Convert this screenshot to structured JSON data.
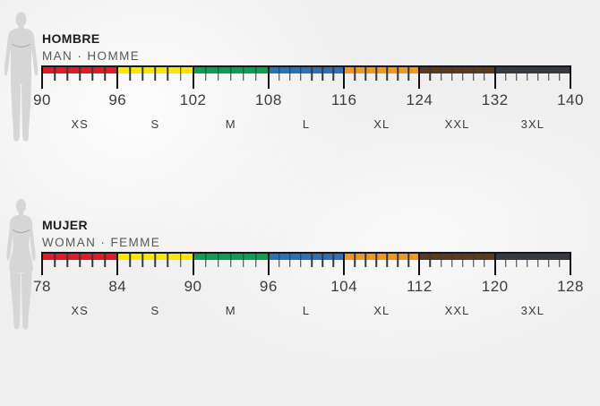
{
  "colors": {
    "background": "#efeff0",
    "ruler_line": "#17191c",
    "xs_red": "#e11b22",
    "s_yellow": "#fce500",
    "m_green": "#0d9e4f",
    "l_blue": "#2a72b8",
    "xl_orange": "#f0971f",
    "xxl_brown": "#5c3a1b",
    "xxxl_dark": "#363b43",
    "silhouette": "#d6d6d7",
    "title_text": "#1d1d1b",
    "subtitle_text": "#585857",
    "number_text": "#3c3c3b"
  },
  "charts": [
    {
      "title": "HOMBRE",
      "subtitle": "MAN · HOMME",
      "figure": "male-silhouette",
      "scale_numbers": [
        "90",
        "96",
        "102",
        "108",
        "116",
        "124",
        "132",
        "140"
      ],
      "segments": [
        {
          "size": "XS",
          "color": "#e11b22",
          "from": "90",
          "to": "96",
          "subdivisions": 6
        },
        {
          "size": "S",
          "color": "#fce500",
          "from": "96",
          "to": "102",
          "subdivisions": 6
        },
        {
          "size": "M",
          "color": "#0d9e4f",
          "from": "102",
          "to": "108",
          "subdivisions": 6
        },
        {
          "size": "L",
          "color": "#2a72b8",
          "from": "108",
          "to": "116",
          "subdivisions": 7
        },
        {
          "size": "XL",
          "color": "#f0971f",
          "from": "116",
          "to": "124",
          "subdivisions": 7
        },
        {
          "size": "XXL",
          "color": "#5c3a1b",
          "from": "124",
          "to": "132",
          "subdivisions": 7
        },
        {
          "size": "3XL",
          "color": "#363b43",
          "from": "132",
          "to": "140",
          "subdivisions": 7
        }
      ]
    },
    {
      "title": "MUJER",
      "subtitle": "WOMAN · FEMME",
      "figure": "female-silhouette",
      "scale_numbers": [
        "78",
        "84",
        "90",
        "96",
        "104",
        "112",
        "120",
        "128"
      ],
      "segments": [
        {
          "size": "XS",
          "color": "#e11b22",
          "from": "78",
          "to": "84",
          "subdivisions": 6
        },
        {
          "size": "S",
          "color": "#fce500",
          "from": "84",
          "to": "90",
          "subdivisions": 6
        },
        {
          "size": "M",
          "color": "#0d9e4f",
          "from": "90",
          "to": "96",
          "subdivisions": 6
        },
        {
          "size": "L",
          "color": "#2a72b8",
          "from": "96",
          "to": "104",
          "subdivisions": 7
        },
        {
          "size": "XL",
          "color": "#f0971f",
          "from": "104",
          "to": "112",
          "subdivisions": 7
        },
        {
          "size": "XXL",
          "color": "#5c3a1b",
          "from": "112",
          "to": "120",
          "subdivisions": 7
        },
        {
          "size": "3XL",
          "color": "#363b43",
          "from": "120",
          "to": "128",
          "subdivisions": 7
        }
      ]
    }
  ],
  "chart_data": [
    {
      "type": "table",
      "title": "HOMBRE / MAN · HOMME",
      "categories": [
        "XS",
        "S",
        "M",
        "L",
        "XL",
        "XXL",
        "3XL"
      ],
      "ranges_cm": [
        [
          90,
          96
        ],
        [
          96,
          102
        ],
        [
          102,
          108
        ],
        [
          108,
          116
        ],
        [
          116,
          124
        ],
        [
          124,
          132
        ],
        [
          132,
          140
        ]
      ],
      "scale_ticks": [
        90,
        96,
        102,
        108,
        116,
        124,
        132,
        140
      ],
      "segment_colors": [
        "#e11b22",
        "#fce500",
        "#0d9e4f",
        "#2a72b8",
        "#f0971f",
        "#5c3a1b",
        "#363b43"
      ],
      "xlim": [
        90,
        140
      ]
    },
    {
      "type": "table",
      "title": "MUJER / WOMAN · FEMME",
      "categories": [
        "XS",
        "S",
        "M",
        "L",
        "XL",
        "XXL",
        "3XL"
      ],
      "ranges_cm": [
        [
          78,
          84
        ],
        [
          84,
          90
        ],
        [
          90,
          96
        ],
        [
          96,
          104
        ],
        [
          104,
          112
        ],
        [
          112,
          120
        ],
        [
          120,
          128
        ]
      ],
      "scale_ticks": [
        78,
        84,
        90,
        96,
        104,
        112,
        120,
        128
      ],
      "segment_colors": [
        "#e11b22",
        "#fce500",
        "#0d9e4f",
        "#2a72b8",
        "#f0971f",
        "#5c3a1b",
        "#363b43"
      ],
      "xlim": [
        78,
        128
      ]
    }
  ]
}
